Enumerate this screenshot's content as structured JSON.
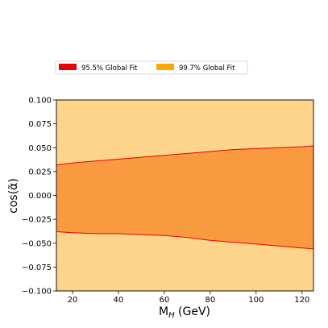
{
  "chart_data": {
    "type": "area",
    "title": "",
    "xlabel": "M_H (GeV)",
    "ylabel": "cos(α̃)",
    "xlim": [
      13,
      125
    ],
    "ylim": [
      -0.1,
      0.1
    ],
    "x_ticks": [
      20,
      40,
      60,
      80,
      100,
      120
    ],
    "y_ticks": [
      -0.1,
      -0.075,
      -0.05,
      -0.025,
      0.0,
      0.025,
      0.05,
      0.075,
      0.1
    ],
    "x_tick_labels": [
      "20",
      "40",
      "60",
      "80",
      "100",
      "120"
    ],
    "y_tick_labels": [
      "−0.100",
      "−0.075",
      "−0.050",
      "−0.025",
      "0.000",
      "0.025",
      "0.050",
      "0.075",
      "0.100"
    ],
    "grid": false,
    "legend_position": "top",
    "colors": {
      "fit_95": "#f99a40",
      "fit_95_edge": "#e8000b",
      "fit_997": "#fcd48a",
      "fit_997_edge": "#f5a800",
      "legend_95": "#e8000b",
      "legend_997": "#fca800"
    },
    "series": [
      {
        "name": "95.5% Global Fit",
        "x": [
          13,
          20,
          30,
          40,
          50,
          60,
          70,
          80,
          90,
          100,
          110,
          120,
          125
        ],
        "upper": [
          0.032,
          0.034,
          0.036,
          0.038,
          0.04,
          0.042,
          0.044,
          0.046,
          0.048,
          0.049,
          0.05,
          0.051,
          0.052
        ],
        "lower": [
          -0.038,
          -0.039,
          -0.04,
          -0.04,
          -0.041,
          -0.042,
          -0.044,
          -0.047,
          -0.049,
          -0.051,
          -0.053,
          -0.055,
          -0.056
        ]
      },
      {
        "name": "99.7% Global Fit",
        "x": [
          13,
          125
        ],
        "upper": [
          0.1,
          0.1
        ],
        "lower": [
          -0.1,
          -0.1
        ]
      }
    ]
  }
}
